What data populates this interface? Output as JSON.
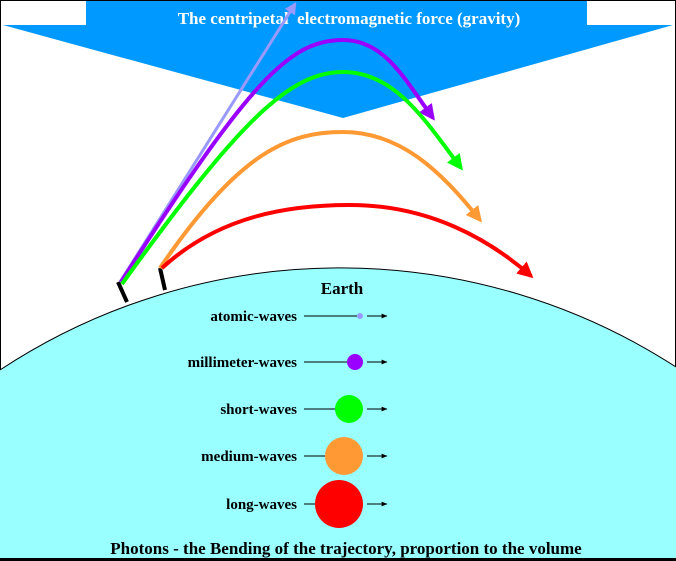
{
  "title": "The centripetal  electromagnetic force (gravity)",
  "earth_label": "Earth",
  "caption": "Photons - the Bending of the trajectory, proportion to the volume",
  "colors": {
    "force": "#0099ff",
    "earth": "#99ffff",
    "title_text": "#ffffff",
    "atomic": "#9999ff",
    "millimeter": "#9900ff",
    "short": "#00ff00",
    "medium": "#ff9933",
    "long": "#ff0000"
  },
  "waves": [
    {
      "label": "atomic-waves",
      "color": "#9999ff"
    },
    {
      "label": "millimeter-waves",
      "color": "#9900ff"
    },
    {
      "label": "short-waves",
      "color": "#00ff00"
    },
    {
      "label": "medium-waves",
      "color": "#ff9933"
    },
    {
      "label": "long-waves",
      "color": "#ff0000"
    }
  ]
}
